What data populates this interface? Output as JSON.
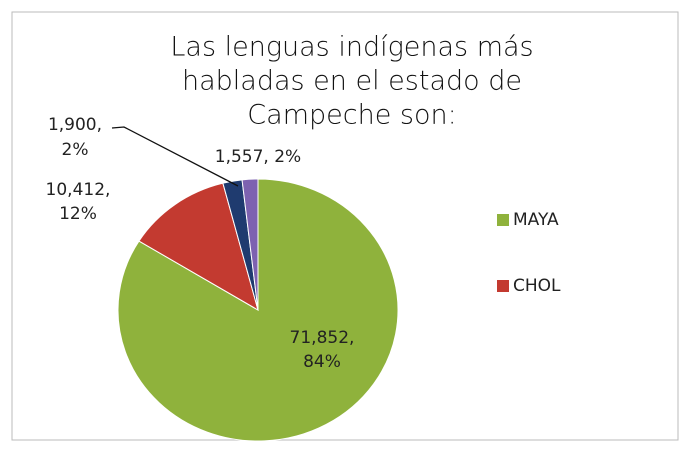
{
  "chart_data": {
    "type": "pie",
    "title": [
      "Las lenguas indígenas más",
      "habladas en el estado de",
      "Campeche son:"
    ],
    "categories": [
      "MAYA",
      "CHOL",
      null,
      null
    ],
    "values": [
      71852,
      10412,
      1900,
      1557
    ],
    "value_labels": [
      [
        "71,852,",
        "84%"
      ],
      [
        "10,412,",
        "12%"
      ],
      [
        "1,900,",
        "2%"
      ],
      [
        "1,557, 2%"
      ]
    ],
    "colors": [
      "#8fb23c",
      "#c33a30",
      "#1f3b6f",
      "#7d62b0"
    ]
  }
}
